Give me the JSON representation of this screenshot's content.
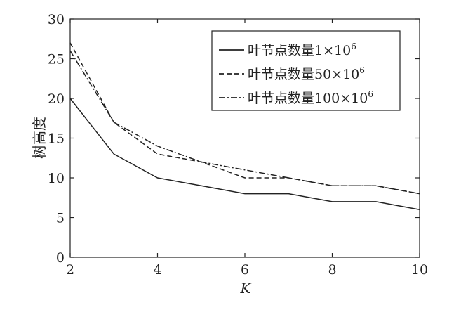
{
  "chart_data": {
    "type": "line",
    "title": "",
    "xlabel": "K",
    "ylabel": "树高度",
    "xlim": [
      2,
      10
    ],
    "ylim": [
      0,
      30
    ],
    "xticks": [
      2,
      4,
      6,
      8,
      10
    ],
    "yticks": [
      0,
      5,
      10,
      15,
      20,
      25,
      30
    ],
    "grid": false,
    "legend_position": "top-right",
    "x": [
      2,
      3,
      4,
      5,
      6,
      7,
      8,
      9,
      10
    ],
    "series": [
      {
        "name": "叶节点数量1×10",
        "sup": "6",
        "dash": "solid",
        "values": [
          20,
          13,
          10,
          9,
          8,
          8,
          7,
          7,
          6
        ]
      },
      {
        "name": "叶节点数量50×10",
        "sup": "6",
        "dash": "dashed",
        "values": [
          27,
          17,
          13,
          12,
          10,
          10,
          9,
          9,
          8
        ]
      },
      {
        "name": "叶节点数量100×10",
        "sup": "6",
        "dash": "dashdot",
        "values": [
          26,
          17,
          14,
          12,
          11,
          10,
          9,
          9,
          8
        ]
      }
    ]
  }
}
